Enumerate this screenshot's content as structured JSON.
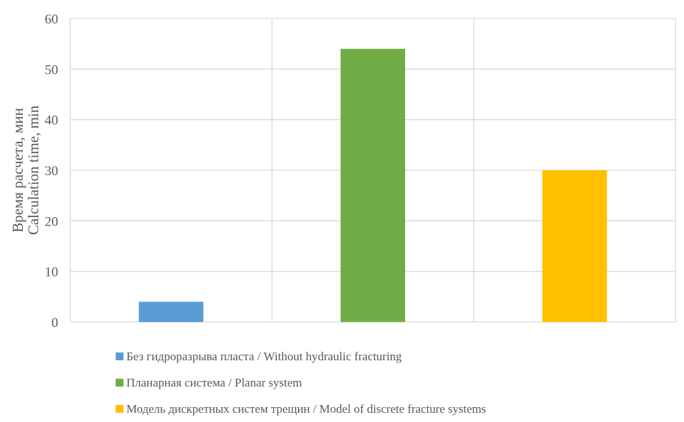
{
  "chart_data": {
    "type": "bar",
    "title": "",
    "xlabel": "",
    "ylabel_lines": [
      "Время расчета, мин",
      "Calculation time, min"
    ],
    "ylim": [
      0,
      60
    ],
    "yticks": [
      0,
      10,
      20,
      30,
      40,
      50,
      60
    ],
    "grid": true,
    "legend_position": "bottom",
    "categories": [
      "Без гидроразрыва пласта /  Without hydraulic fracturing",
      "Планарная система / Planar system",
      "Модель дискретных систем трещин / Model of discrete fracture systems"
    ],
    "values": [
      4,
      54,
      30
    ],
    "colors": [
      "#5b9bd5",
      "#70ad47",
      "#ffc000"
    ]
  }
}
